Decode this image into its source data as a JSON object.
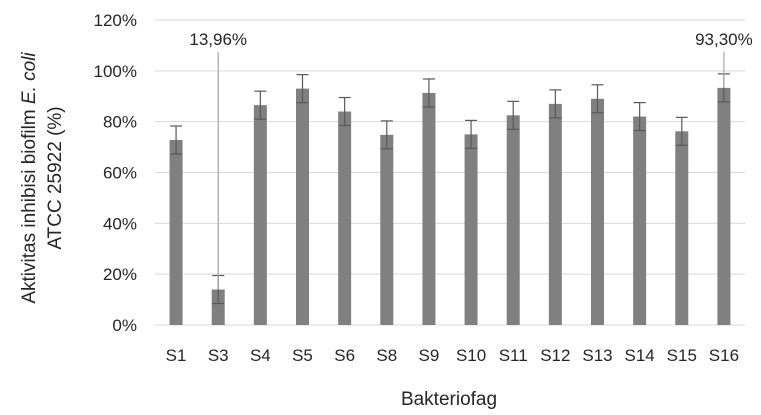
{
  "chart_data": {
    "type": "bar",
    "categories": [
      "S1",
      "S3",
      "S4",
      "S5",
      "S6",
      "S8",
      "S9",
      "S10",
      "S11",
      "S12",
      "S13",
      "S14",
      "S15",
      "S16"
    ],
    "values": [
      72.8,
      13.96,
      86.5,
      93.0,
      84.0,
      74.8,
      91.3,
      75.0,
      82.5,
      87.0,
      89.0,
      82.0,
      76.2,
      93.3
    ],
    "errors": [
      5.5,
      5.5,
      5.5,
      5.5,
      5.5,
      5.5,
      5.5,
      5.5,
      5.5,
      5.5,
      5.5,
      5.5,
      5.5,
      5.5
    ],
    "title": "",
    "xlabel": "Bakteriofag",
    "ylabel_line1_prefix": "Aktivitas inhibisi biofilm ",
    "ylabel_line1_italic": "E. coli",
    "ylabel_line2": "ATCC 25922 (%)",
    "ylim": [
      0,
      120
    ],
    "yticks": [
      "0%",
      "20%",
      "40%",
      "60%",
      "80%",
      "100%",
      "120%"
    ],
    "ytick_values": [
      0,
      20,
      40,
      60,
      80,
      100,
      120
    ],
    "grid": true,
    "legend": "none",
    "bar_color": "#808080",
    "grid_color": "#d9d9d9",
    "annotations": [
      {
        "text": "13,96%",
        "category": "S3"
      },
      {
        "text": "93,30%",
        "category": "S16"
      }
    ]
  }
}
